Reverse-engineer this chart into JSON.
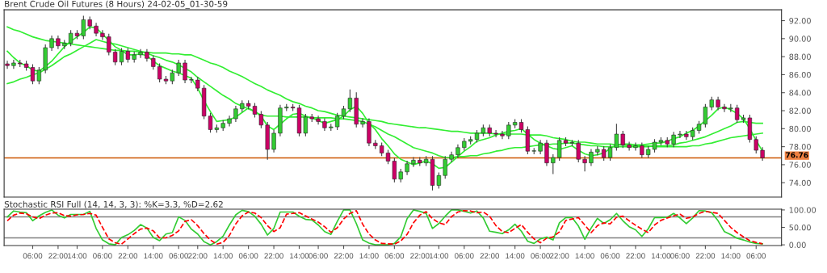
{
  "chart_data": [
    {
      "type": "candlestick",
      "title": "Brent Crude Oil Futures (8 Hours) 24-02-05_01-30-59",
      "categories": [
        null,
        null,
        null,
        null,
        null,
        null,
        null,
        null,
        null,
        null,
        null,
        null,
        null,
        null,
        null,
        null,
        null,
        null,
        null,
        null,
        null,
        null,
        null,
        null,
        null,
        null,
        null,
        null,
        null,
        null,
        null,
        null,
        null,
        null,
        null,
        null,
        null,
        null,
        null,
        null,
        null,
        null,
        null,
        null,
        null,
        null,
        null,
        null,
        null,
        null,
        null,
        null,
        null,
        null,
        null,
        null,
        null,
        null,
        null,
        null,
        null,
        null,
        null,
        null,
        null,
        null,
        null,
        null,
        null,
        null,
        null,
        null,
        null,
        null,
        null,
        null,
        null,
        null,
        null,
        null,
        null,
        null,
        null,
        null,
        null,
        null,
        null,
        null,
        null,
        null,
        null,
        null,
        null,
        null,
        null,
        null,
        null,
        null,
        null,
        null,
        null,
        null,
        null,
        null,
        null,
        null,
        null,
        null,
        null,
        null,
        null,
        null,
        null,
        null,
        null,
        null,
        null,
        null,
        null,
        null
      ],
      "ohlc": [
        [
          87.2,
          87.5,
          86.7,
          87.0
        ],
        [
          87.0,
          87.6,
          86.7,
          87.3
        ],
        [
          87.3,
          87.6,
          86.9,
          87.2
        ],
        [
          87.2,
          87.5,
          86.5,
          86.8
        ],
        [
          86.8,
          87.1,
          85.0,
          85.3
        ],
        [
          85.3,
          86.8,
          85.0,
          86.5
        ],
        [
          86.5,
          89.3,
          86.2,
          89.0
        ],
        [
          89.0,
          90.3,
          88.7,
          90.0
        ],
        [
          90.0,
          90.3,
          88.9,
          89.2
        ],
        [
          89.2,
          89.8,
          88.9,
          89.5
        ],
        [
          89.5,
          90.9,
          89.2,
          90.6
        ],
        [
          90.6,
          90.9,
          90.0,
          90.3
        ],
        [
          90.3,
          92.5,
          90.0,
          92.1
        ],
        [
          92.1,
          92.4,
          91.1,
          91.4
        ],
        [
          91.4,
          91.7,
          90.3,
          90.6
        ],
        [
          90.6,
          90.9,
          89.9,
          90.2
        ],
        [
          90.2,
          90.5,
          88.2,
          88.5
        ],
        [
          88.5,
          88.8,
          87.1,
          87.4
        ],
        [
          87.4,
          88.9,
          87.1,
          88.6
        ],
        [
          88.6,
          88.9,
          87.4,
          87.7
        ],
        [
          87.7,
          88.5,
          87.4,
          88.2
        ],
        [
          88.2,
          88.8,
          87.9,
          88.5
        ],
        [
          88.5,
          88.8,
          87.5,
          87.8
        ],
        [
          87.8,
          88.1,
          86.6,
          86.9
        ],
        [
          86.9,
          87.2,
          85.2,
          85.5
        ],
        [
          85.5,
          85.8,
          85.0,
          85.3
        ],
        [
          85.3,
          86.5,
          85.0,
          86.2
        ],
        [
          86.2,
          87.6,
          85.9,
          87.3
        ],
        [
          87.3,
          87.6,
          85.1,
          85.4
        ],
        [
          85.4,
          85.7,
          85.1,
          85.4
        ],
        [
          85.4,
          85.7,
          84.2,
          84.5
        ],
        [
          84.5,
          84.8,
          81.1,
          81.4
        ],
        [
          81.4,
          81.7,
          79.6,
          79.9
        ],
        [
          79.9,
          80.4,
          79.6,
          80.1
        ],
        [
          80.1,
          80.9,
          79.8,
          80.6
        ],
        [
          80.6,
          81.4,
          80.3,
          81.1
        ],
        [
          81.1,
          82.5,
          80.8,
          82.2
        ],
        [
          82.2,
          83.1,
          81.9,
          82.8
        ],
        [
          82.8,
          83.1,
          82.2,
          82.5
        ],
        [
          82.5,
          82.8,
          81.3,
          81.6
        ],
        [
          81.6,
          81.9,
          80.1,
          80.4
        ],
        [
          80.4,
          80.7,
          76.6,
          77.7
        ],
        [
          77.7,
          79.8,
          77.4,
          79.5
        ],
        [
          79.5,
          82.6,
          79.2,
          82.3
        ],
        [
          82.3,
          82.7,
          82.0,
          82.4
        ],
        [
          82.4,
          82.7,
          82.0,
          82.3
        ],
        [
          82.3,
          82.6,
          79.2,
          79.5
        ],
        [
          79.5,
          81.6,
          79.2,
          81.3
        ],
        [
          81.3,
          81.6,
          80.8,
          81.1
        ],
        [
          81.1,
          81.4,
          80.5,
          80.8
        ],
        [
          80.8,
          81.1,
          79.8,
          80.1
        ],
        [
          80.1,
          80.5,
          79.8,
          80.2
        ],
        [
          80.2,
          81.7,
          79.9,
          81.4
        ],
        [
          81.4,
          82.5,
          81.1,
          82.2
        ],
        [
          82.2,
          84.3,
          81.9,
          83.4
        ],
        [
          83.4,
          84.0,
          80.2,
          80.5
        ],
        [
          80.5,
          81.1,
          80.2,
          80.8
        ],
        [
          80.8,
          81.1,
          78.1,
          78.4
        ],
        [
          78.4,
          78.7,
          77.8,
          78.1
        ],
        [
          78.1,
          78.4,
          77.0,
          77.3
        ],
        [
          77.3,
          77.6,
          76.1,
          76.4
        ],
        [
          76.4,
          76.7,
          74.1,
          74.4
        ],
        [
          74.4,
          75.5,
          74.1,
          75.2
        ],
        [
          75.2,
          76.4,
          74.9,
          76.1
        ],
        [
          76.1,
          76.8,
          75.8,
          76.5
        ],
        [
          76.5,
          76.8,
          75.9,
          76.2
        ],
        [
          76.2,
          76.9,
          75.9,
          76.6
        ],
        [
          76.6,
          76.9,
          73.2,
          73.7
        ],
        [
          73.7,
          75.1,
          73.4,
          74.8
        ],
        [
          74.8,
          76.9,
          74.5,
          76.6
        ],
        [
          76.6,
          77.4,
          76.3,
          77.1
        ],
        [
          77.1,
          78.2,
          76.8,
          77.9
        ],
        [
          77.9,
          78.9,
          77.6,
          78.6
        ],
        [
          78.6,
          79.1,
          78.3,
          78.8
        ],
        [
          78.8,
          79.8,
          78.5,
          79.5
        ],
        [
          79.5,
          80.4,
          79.2,
          80.1
        ],
        [
          80.1,
          80.4,
          79.2,
          79.5
        ],
        [
          79.5,
          79.8,
          79.1,
          79.4
        ],
        [
          79.4,
          79.7,
          78.9,
          79.2
        ],
        [
          79.2,
          80.7,
          78.9,
          80.4
        ],
        [
          80.4,
          81.0,
          80.1,
          80.7
        ],
        [
          80.7,
          81.0,
          79.6,
          79.9
        ],
        [
          79.9,
          80.2,
          77.2,
          77.5
        ],
        [
          77.5,
          77.8,
          77.2,
          77.5
        ],
        [
          77.5,
          78.7,
          77.2,
          78.4
        ],
        [
          78.4,
          78.7,
          75.9,
          76.2
        ],
        [
          76.2,
          77.1,
          75.0,
          76.8
        ],
        [
          76.8,
          79.0,
          76.5,
          78.7
        ],
        [
          78.7,
          79.0,
          78.1,
          78.4
        ],
        [
          78.4,
          78.7,
          78.1,
          78.4
        ],
        [
          78.4,
          78.7,
          76.3,
          76.6
        ],
        [
          76.6,
          76.9,
          75.3,
          76.2
        ],
        [
          76.2,
          77.7,
          75.9,
          77.4
        ],
        [
          77.4,
          78.0,
          77.1,
          77.7
        ],
        [
          77.7,
          78.0,
          76.5,
          76.8
        ],
        [
          76.8,
          78.2,
          76.5,
          77.9
        ],
        [
          77.9,
          80.5,
          77.6,
          79.4
        ],
        [
          79.4,
          79.7,
          77.9,
          78.2
        ],
        [
          78.2,
          78.5,
          77.6,
          77.9
        ],
        [
          77.9,
          78.4,
          77.6,
          78.1
        ],
        [
          78.1,
          78.4,
          76.8,
          77.1
        ],
        [
          77.1,
          78.0,
          76.8,
          77.7
        ],
        [
          77.7,
          78.8,
          77.4,
          78.5
        ],
        [
          78.5,
          79.0,
          78.2,
          78.7
        ],
        [
          78.7,
          79.0,
          78.0,
          78.3
        ],
        [
          78.3,
          79.6,
          78.0,
          79.3
        ],
        [
          79.3,
          79.7,
          79.0,
          79.4
        ],
        [
          79.4,
          79.7,
          78.8,
          79.1
        ],
        [
          79.1,
          80.1,
          78.8,
          79.8
        ],
        [
          79.8,
          80.8,
          79.5,
          80.5
        ],
        [
          80.5,
          82.7,
          80.2,
          82.4
        ],
        [
          82.4,
          83.5,
          82.1,
          83.2
        ],
        [
          83.2,
          83.5,
          82.1,
          82.4
        ],
        [
          82.4,
          82.7,
          81.9,
          82.2
        ],
        [
          82.2,
          82.7,
          81.9,
          82.3
        ],
        [
          82.3,
          82.6,
          80.7,
          81.0
        ],
        [
          81.0,
          81.5,
          80.7,
          81.2
        ],
        [
          81.2,
          81.5,
          78.5,
          78.8
        ],
        [
          78.8,
          79.1,
          77.3,
          77.6
        ],
        [
          77.6,
          77.9,
          76.5,
          76.76
        ]
      ],
      "colors": [
        "#cc0066",
        "#33cc33",
        "#cc0066",
        "#cc0066",
        "#cc0066",
        "#33cc33",
        "#33cc33",
        "#33cc33",
        "#cc0066",
        "#33cc33",
        "#33cc33",
        "#cc0066",
        "#33cc33",
        "#cc0066",
        "#cc0066",
        "#cc0066",
        "#cc0066",
        "#cc0066",
        "#33cc33",
        "#cc0066",
        "#33cc33",
        "#33cc33",
        "#cc0066",
        "#cc0066",
        "#cc0066",
        "#cc0066",
        "#33cc33",
        "#33cc33",
        "#cc0066",
        "#33cc33",
        "#cc0066",
        "#cc0066",
        "#cc0066",
        "#33cc33",
        "#33cc33",
        "#33cc33",
        "#33cc33",
        "#33cc33",
        "#cc0066",
        "#cc0066",
        "#cc0066",
        "#cc0066",
        "#33cc33",
        "#33cc33",
        "#33cc33",
        "#cc0066",
        "#cc0066",
        "#33cc33",
        "#cc0066",
        "#cc0066",
        "#cc0066",
        "#33cc33",
        "#33cc33",
        "#33cc33",
        "#33cc33",
        "#cc0066",
        "#33cc33",
        "#cc0066",
        "#cc0066",
        "#cc0066",
        "#cc0066",
        "#cc0066",
        "#33cc33",
        "#33cc33",
        "#33cc33",
        "#cc0066",
        "#33cc33",
        "#cc0066",
        "#33cc33",
        "#33cc33",
        "#33cc33",
        "#33cc33",
        "#33cc33",
        "#33cc33",
        "#33cc33",
        "#33cc33",
        "#cc0066",
        "#cc0066",
        "#cc0066",
        "#33cc33",
        "#33cc33",
        "#cc0066",
        "#cc0066",
        "#33cc33",
        "#33cc33",
        "#cc0066",
        "#33cc33",
        "#33cc33",
        "#cc0066",
        "#33cc33",
        "#cc0066",
        "#cc0066",
        "#33cc33",
        "#33cc33",
        "#cc0066",
        "#33cc33",
        "#33cc33",
        "#cc0066",
        "#cc0066",
        "#33cc33",
        "#cc0066",
        "#33cc33",
        "#33cc33",
        "#33cc33",
        "#cc0066",
        "#33cc33",
        "#33cc33",
        "#cc0066",
        "#33cc33",
        "#33cc33",
        "#33cc33",
        "#33cc33",
        "#cc0066",
        "#cc0066",
        "#33cc33",
        "#cc0066",
        "#33cc33",
        "#cc0066",
        "#cc0066",
        "#cc0066"
      ],
      "series": [
        {
          "type": "line",
          "color": "#33ee33",
          "values": [
            91.3,
            91.0,
            90.8,
            90.5,
            90.2,
            90.0,
            89.8,
            89.7,
            89.6,
            89.5,
            89.4,
            89.3,
            89.2,
            89.1,
            89.0,
            88.9,
            88.8,
            88.7,
            88.7,
            88.6,
            88.6,
            88.5,
            88.5,
            88.4,
            88.4,
            88.4,
            88.3,
            88.3,
            88.2,
            88.2,
            87.9,
            87.6,
            87.3,
            87.1,
            86.8,
            86.4,
            86.1,
            85.8,
            85.4,
            85.0,
            84.7,
            84.3,
            84.0,
            83.7,
            83.3,
            83.0,
            82.8,
            82.5,
            82.3,
            82.0,
            81.9,
            81.7,
            81.5,
            81.4,
            81.3,
            81.2,
            81.1,
            81.0,
            80.9,
            80.8,
            80.6,
            80.5,
            80.4,
            80.3,
            80.2,
            80.1,
            80.1,
            80.0,
            79.9,
            79.8,
            79.7,
            79.7,
            79.6,
            79.5,
            79.5,
            79.5,
            79.5,
            79.4,
            79.4,
            79.4,
            79.4,
            79.4,
            79.3,
            79.3,
            79.3,
            79.2,
            79.0,
            78.9,
            78.8,
            78.6,
            78.5,
            78.5,
            78.4,
            78.3,
            78.3,
            78.3,
            78.2,
            78.2,
            78.1,
            78.1,
            78.1,
            78.1,
            78.0,
            78.0,
            78.0,
            78.0,
            78.0,
            78.0,
            78.1,
            78.1,
            78.3,
            78.4,
            78.6,
            78.8,
            79.0,
            79.1,
            79.2,
            79.3,
            79.4,
            79.5
          ]
        },
        {
          "type": "line",
          "color": "#33ee33",
          "values": [
            85.0,
            85.2,
            85.5,
            85.7,
            86.0,
            86.2,
            86.6,
            87.0,
            87.5,
            88.0,
            88.3,
            88.7,
            89.1,
            89.5,
            89.9,
            89.7,
            89.5,
            89.4,
            89.2,
            89.0,
            88.8,
            88.6,
            88.4,
            88.1,
            87.9,
            87.6,
            87.4,
            87.1,
            86.7,
            86.3,
            85.7,
            85.2,
            84.7,
            84.2,
            83.7,
            83.3,
            82.8,
            82.5,
            82.2,
            81.9,
            81.5,
            81.4,
            81.4,
            81.4,
            81.3,
            81.3,
            81.3,
            81.3,
            81.2,
            81.2,
            81.2,
            81.2,
            81.1,
            81.1,
            81.0,
            80.9,
            80.8,
            80.5,
            80.2,
            79.8,
            79.4,
            79.1,
            78.7,
            78.3,
            77.9,
            77.7,
            77.5,
            77.3,
            77.0,
            76.8,
            76.8,
            76.9,
            76.9,
            77.0,
            77.0,
            77.2,
            77.3,
            77.5,
            77.6,
            77.8,
            77.9,
            77.9,
            78.0,
            78.1,
            78.2,
            78.2,
            78.3,
            78.3,
            78.4,
            78.4,
            78.3,
            78.2,
            78.1,
            78.1,
            78.0,
            78.0,
            78.0,
            78.0,
            78.0,
            78.0,
            78.0,
            78.0,
            78.1,
            78.1,
            78.1,
            78.2,
            78.4,
            78.5,
            78.7,
            78.9,
            79.1,
            79.4,
            79.7,
            80.0,
            80.3,
            80.7,
            80.8,
            80.7,
            80.6,
            80.6
          ]
        },
        {
          "type": "line",
          "color": "#33ee33",
          "values": [
            88.6,
            87.9,
            87.3,
            87.0,
            86.5,
            86.4,
            86.9,
            87.5,
            88.3,
            89.1,
            89.7,
            90.2,
            90.7,
            91.3,
            91.2,
            90.5,
            89.8,
            89.1,
            88.7,
            88.2,
            88.2,
            88.3,
            88.1,
            87.5,
            87.0,
            86.7,
            86.4,
            86.2,
            85.9,
            85.6,
            84.5,
            83.1,
            81.9,
            80.8,
            80.9,
            81.0,
            81.3,
            81.8,
            82.3,
            81.9,
            81.4,
            80.3,
            79.9,
            80.5,
            81.1,
            81.6,
            81.7,
            81.4,
            81.2,
            80.9,
            80.6,
            80.8,
            81.0,
            81.4,
            82.1,
            82.5,
            81.7,
            80.6,
            79.9,
            78.9,
            78.1,
            77.2,
            76.6,
            76.3,
            76.0,
            76.2,
            76.4,
            76.1,
            75.6,
            75.7,
            76.3,
            76.9,
            77.5,
            78.0,
            78.6,
            78.8,
            79.0,
            79.3,
            79.5,
            79.7,
            79.8,
            80.0,
            79.4,
            78.8,
            78.4,
            78.1,
            77.8,
            77.7,
            77.9,
            78.1,
            77.6,
            77.2,
            77.0,
            77.1,
            77.3,
            77.8,
            78.2,
            78.3,
            78.3,
            78.2,
            78.2,
            78.3,
            78.4,
            78.4,
            78.6,
            78.9,
            79.1,
            79.5,
            79.8,
            80.3,
            80.9,
            81.5,
            82.2,
            82.4,
            82.1,
            81.7,
            81.1,
            80.0,
            78.7,
            77.5
          ]
        }
      ],
      "ylim": [
        72.4,
        93.2
      ],
      "yticks": [
        {
          "value": 74,
          "label": "74.00"
        },
        {
          "value": 76,
          "label": "76.00"
        },
        {
          "value": 78,
          "label": "78.00"
        },
        {
          "value": 80,
          "label": "80.00"
        },
        {
          "value": 82,
          "label": "82.00"
        },
        {
          "value": 84,
          "label": "84.00"
        },
        {
          "value": 86,
          "label": "86.00"
        },
        {
          "value": 88,
          "label": "88.00"
        },
        {
          "value": 90,
          "label": "90.00"
        },
        {
          "value": 92,
          "label": "92.00"
        }
      ],
      "ref_lines": [
        {
          "axis": "y",
          "value": 76.76,
          "label": "76.76",
          "color": "#cc5500"
        }
      ],
      "tick_labels": "y"
    },
    {
      "type": "line",
      "title": "Stochastic RSI Full (14, 14, 3, 3): %K=3.3, %D=2.62",
      "series": [
        {
          "color": "#33cc33",
          "line_style": "solid",
          "values": [
            80,
            97,
            94,
            92,
            69,
            83,
            93,
            100,
            85,
            77,
            87,
            87,
            87,
            96,
            47,
            14,
            3,
            0,
            21,
            29,
            41,
            58,
            48,
            21,
            12,
            31,
            35,
            80,
            70,
            45,
            31,
            9,
            0,
            9,
            25,
            57,
            86,
            99,
            95,
            82,
            59,
            28,
            47,
            94,
            94,
            94,
            82,
            73,
            71,
            57,
            38,
            30,
            67,
            100,
            100,
            61,
            14,
            5,
            0,
            0,
            0,
            4,
            23,
            75,
            100,
            96,
            90,
            47,
            61,
            82,
            100,
            100,
            96,
            91,
            97,
            77,
            39,
            36,
            32,
            43,
            59,
            39,
            10,
            4,
            17,
            22,
            14,
            63,
            78,
            78,
            54,
            16,
            48,
            76,
            61,
            72,
            90,
            69,
            52,
            43,
            24,
            46,
            78,
            78,
            79,
            90,
            77,
            61,
            77,
            98,
            97,
            92,
            69,
            38,
            29,
            19,
            14,
            8,
            4,
            3
          ]
        },
        {
          "color": "#ff0000",
          "line_style": "dashed",
          "values": [
            69,
            85,
            91,
            89,
            80,
            75,
            85,
            91,
            92,
            84,
            82,
            86,
            87,
            90,
            85,
            50,
            17,
            6,
            2,
            17,
            32,
            45,
            48,
            40,
            20,
            20,
            27,
            40,
            67,
            72,
            55,
            32,
            14,
            2,
            7,
            27,
            60,
            83,
            94,
            91,
            78,
            55,
            38,
            49,
            88,
            90,
            92,
            83,
            74,
            65,
            52,
            36,
            49,
            74,
            90,
            98,
            59,
            31,
            14,
            4,
            3,
            2,
            11,
            30,
            63,
            85,
            95,
            75,
            63,
            58,
            81,
            94,
            98,
            97,
            92,
            94,
            82,
            55,
            38,
            35,
            47,
            58,
            36,
            17,
            6,
            19,
            23,
            37,
            70,
            74,
            78,
            57,
            35,
            55,
            63,
            60,
            79,
            82,
            69,
            56,
            45,
            35,
            57,
            70,
            77,
            83,
            88,
            76,
            80,
            90,
            96,
            93,
            90,
            70,
            50,
            35,
            23,
            12,
            7,
            3
          ]
        }
      ],
      "categories": [
        null,
        null,
        null,
        null,
        "06:00",
        null,
        null,
        null,
        "22:00",
        null,
        null,
        "14:00",
        null,
        null,
        null,
        "06:00",
        null,
        null,
        null,
        "22:00",
        null,
        null,
        null,
        "14:00",
        null,
        null,
        null,
        "06:00",
        null,
        null,
        "22:00",
        null,
        null,
        null,
        "14:00",
        null,
        null,
        null,
        "06:00",
        null,
        null,
        null,
        "22:00",
        null,
        null,
        null,
        "14:00",
        null,
        null,
        "06:00",
        null,
        null,
        null,
        "22:00",
        null,
        null,
        null,
        "14:00",
        null,
        null,
        null,
        "06:00",
        null,
        null,
        null,
        "22:00",
        null,
        null,
        "14:00",
        null,
        null,
        null,
        "06:00",
        null,
        null,
        null,
        "22:00",
        null,
        null,
        null,
        "14:00",
        null,
        null,
        null,
        "06:00",
        null,
        null,
        "22:00",
        null,
        null,
        null,
        "14:00",
        null,
        null,
        null,
        "06:00",
        null,
        null,
        null,
        "22:00",
        null,
        null,
        null,
        "14:00",
        null,
        null,
        "06:00",
        null,
        null,
        null,
        "22:00",
        null,
        null,
        null,
        "14:00",
        null,
        null,
        null,
        "06:00",
        null
      ],
      "ylim": [
        -2,
        102
      ],
      "yticks": [
        {
          "value": 0,
          "label": "0.00"
        },
        {
          "value": 50,
          "label": "50.00"
        },
        {
          "value": 100,
          "label": "100.00"
        }
      ],
      "ref_lines": [
        {
          "axis": "y",
          "value": 80,
          "color": "#808080"
        },
        {
          "axis": "y",
          "value": 20,
          "color": "#808080"
        }
      ]
    }
  ]
}
